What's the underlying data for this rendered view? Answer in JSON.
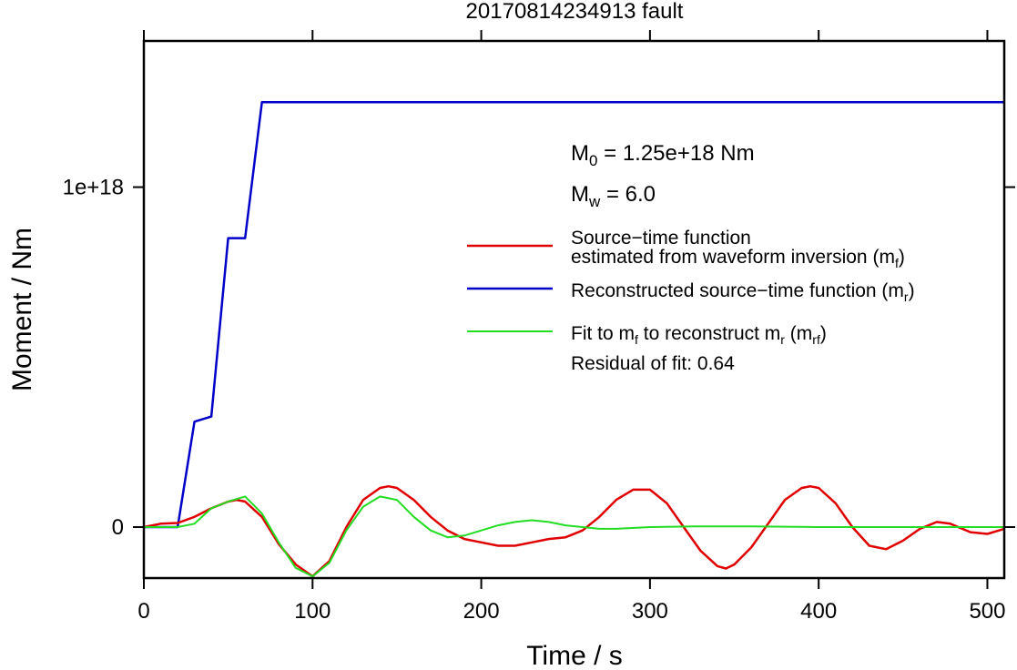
{
  "chart_data": {
    "type": "line",
    "title": "20170814234913 fault",
    "xlabel": "Time / s",
    "ylabel": "Moment / Nm",
    "xlim": [
      0,
      510
    ],
    "ylim": [
      -1.5e+17,
      1.43e+18
    ],
    "x_ticks": [
      0,
      100,
      200,
      300,
      400,
      500
    ],
    "x_tick_labels": [
      "0",
      "100",
      "200",
      "300",
      "400",
      "500"
    ],
    "y_ticks": [
      0,
      1e+18
    ],
    "y_tick_labels": [
      "0",
      "1e+18"
    ],
    "grid": false,
    "legend_position": "right",
    "annotations": {
      "m0": {
        "base": "M",
        "sub": "0",
        "rest": " = 1.25e+18 Nm"
      },
      "mw": {
        "base": "M",
        "sub": "w",
        "rest": " = 6.0"
      },
      "residual": "Residual of fit: 0.64"
    },
    "legend": [
      {
        "lines": [
          "Source−time function",
          "estimated from waveform inversion (m",
          "f",
          ")"
        ],
        "color": "#e00000"
      },
      {
        "lines": [
          "Reconstructed source−time function (m",
          "r",
          ")"
        ],
        "color": "#0000c8"
      },
      {
        "lines": [
          "Fit to m",
          "f",
          " to reconstruct m",
          "r",
          " (m",
          "rf",
          ")"
        ],
        "color": "#22dd22"
      }
    ],
    "series": [
      {
        "color": "#0000c8",
        "x": [
          0,
          20,
          30,
          40,
          50,
          60,
          70,
          80,
          150,
          300,
          510
        ],
        "y": [
          0,
          0,
          3.1e+17,
          3.25e+17,
          8.5e+17,
          8.5e+17,
          1.25e+18,
          1.25e+18,
          1.25e+18,
          1.25e+18,
          1.25e+18
        ]
      },
      {
        "color": "#e00000",
        "x": [
          0,
          10,
          20,
          30,
          40,
          50,
          55,
          60,
          70,
          80,
          90,
          100,
          110,
          120,
          130,
          140,
          145,
          150,
          160,
          170,
          180,
          190,
          200,
          210,
          220,
          230,
          240,
          250,
          260,
          270,
          280,
          290,
          300,
          310,
          320,
          330,
          340,
          345,
          350,
          360,
          370,
          380,
          390,
          395,
          400,
          410,
          420,
          430,
          440,
          450,
          460,
          470,
          478,
          490,
          500,
          510
        ],
        "y": [
          0,
          1e+16,
          1.2e+16,
          3e+16,
          5.5e+16,
          7.5e+16,
          8e+16,
          7.5e+16,
          3e+16,
          -5e+16,
          -1.1e+17,
          -1.45e+17,
          -1e+17,
          0,
          8e+16,
          1.15e+17,
          1.2e+17,
          1.15e+17,
          8e+16,
          3e+16,
          -1e+16,
          -3.5e+16,
          -4.5e+16,
          -5.5e+16,
          -5.5e+16,
          -4.5e+16,
          -3.5e+16,
          -3e+16,
          -1e+16,
          3e+16,
          8e+16,
          1.1e+17,
          1.1e+17,
          7e+16,
          0,
          -7e+16,
          -1.15e+17,
          -1.22e+17,
          -1.1e+17,
          -6e+16,
          1e+16,
          8e+16,
          1.15e+17,
          1.2e+17,
          1.15e+17,
          7e+16,
          0,
          -5.5e+16,
          -6.5e+16,
          -4e+16,
          -5000000000000000.0,
          1.5e+16,
          1e+16,
          -1.5e+16,
          -2e+16,
          -5000000000000000.0
        ]
      },
      {
        "color": "#22dd22",
        "x": [
          0,
          20,
          30,
          40,
          50,
          60,
          70,
          80,
          90,
          100,
          110,
          120,
          130,
          140,
          150,
          160,
          170,
          180,
          190,
          200,
          210,
          220,
          230,
          240,
          250,
          260,
          270,
          280,
          300,
          330,
          360,
          400,
          450,
          510
        ],
        "y": [
          0,
          0,
          1e+16,
          5.5e+16,
          7.5e+16,
          9e+16,
          4e+16,
          -4.5e+16,
          -1.2e+17,
          -1.45e+17,
          -1.05e+17,
          -1e+16,
          6e+16,
          9e+16,
          8e+16,
          3e+16,
          -1e+16,
          -3e+16,
          -2.5e+16,
          -1e+16,
          5000000000000000.0,
          1.5e+16,
          2e+16,
          1.5e+16,
          5000000000000000.0,
          0,
          -5000000000000000.0,
          -5000000000000000.0,
          0,
          2000000000000000.0,
          2000000000000000.0,
          0,
          0,
          0
        ]
      }
    ]
  }
}
